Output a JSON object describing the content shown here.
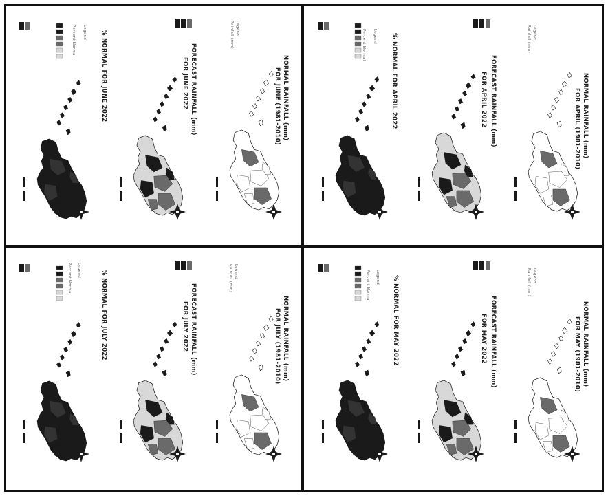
{
  "panels": [
    {
      "id": "tl",
      "month": "June",
      "titles": {
        "normal": [
          "NORMAL RAINFALL (mm)",
          "FOR JUNE (1981-2010)"
        ],
        "forecast": [
          "FORECAST RAINFALL (mm)",
          "FOR JUNE 2022"
        ],
        "percent": [
          "% NORMAL FOR JUNE 2022"
        ]
      }
    },
    {
      "id": "tr",
      "month": "April",
      "titles": {
        "normal": [
          "NORMAL RAINFALL (mm)",
          "FOR APRIL (1981-2010)"
        ],
        "forecast": [
          "FORECAST RAINFALL (mm)",
          "FOR APRIL 2022"
        ],
        "percent": [
          "% NORMAL FOR APRIL 2022"
        ]
      }
    },
    {
      "id": "bl",
      "month": "July",
      "titles": {
        "normal": [
          "NORMAL RAINFALL (mm)",
          "FOR JULY (1981-2010)"
        ],
        "forecast": [
          "FORECAST RAINFALL (mm)",
          "FOR JULY 2022"
        ],
        "percent": [
          "% NORMAL FOR JULY 2022"
        ]
      }
    },
    {
      "id": "br",
      "month": "May",
      "titles": {
        "normal": [
          "NORMAL RAINFALL (mm)",
          "FOR MAY (1981-2010)"
        ],
        "forecast": [
          "FORECAST RAINFALL (mm)",
          "FOR MAY 2022"
        ],
        "percent": [
          "% NORMAL FOR MAY 2022"
        ]
      }
    }
  ],
  "legend": {
    "title": "Legend",
    "rainfall_label": "Rainfall (mm)",
    "percent_label": "Percent Normal"
  },
  "colors": {
    "ink": "#1a1a1a",
    "mid": "#6a6a6a",
    "light": "#d8d8d8",
    "paper": "#ffffff"
  }
}
